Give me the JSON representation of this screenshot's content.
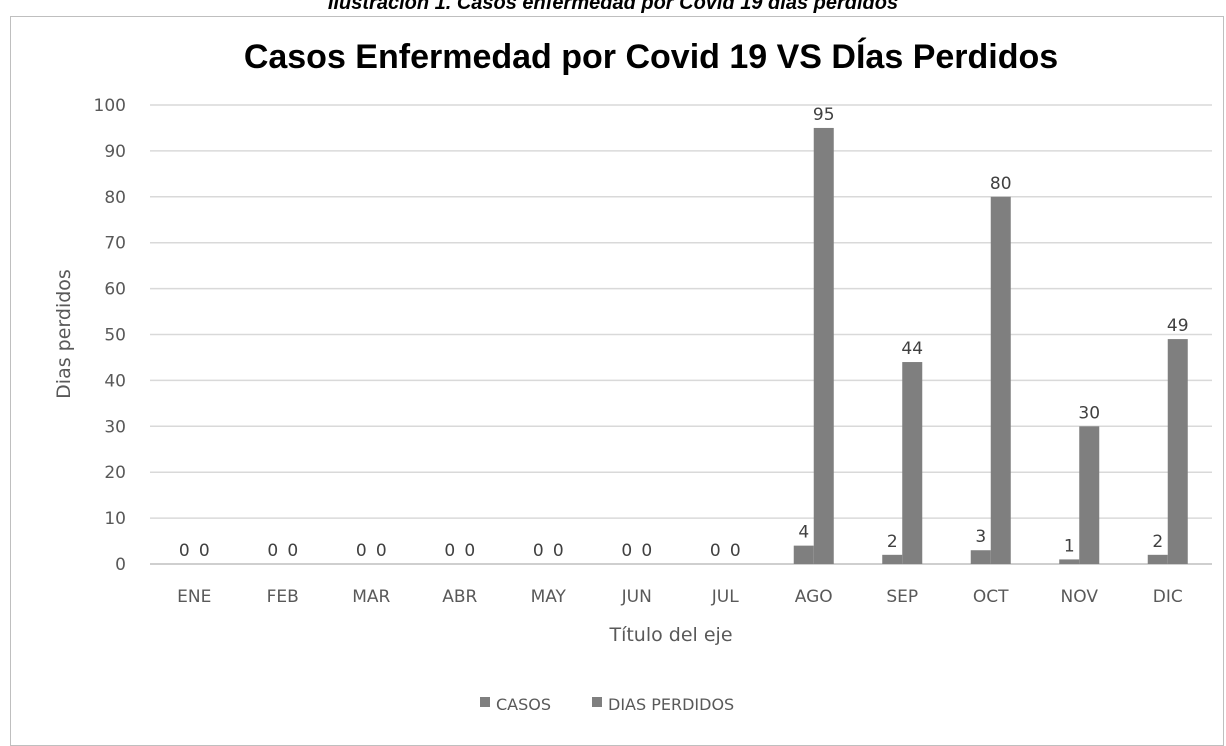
{
  "caption": "Ilustración 1. Casos enfermedad por Covid 19 días perdidos",
  "chart_data": {
    "type": "bar",
    "title": "Casos Enfermedad por Covid 19 VS DÍas Perdidos",
    "xlabel": "Título del eje",
    "ylabel": "Dias perdidos",
    "ylim": [
      0,
      100
    ],
    "yticks": [
      0,
      10,
      20,
      30,
      40,
      50,
      60,
      70,
      80,
      90,
      100
    ],
    "grid": true,
    "legend_position": "bottom",
    "categories": [
      "ENE",
      "FEB",
      "MAR",
      "ABR",
      "MAY",
      "JUN",
      "JUL",
      "AGO",
      "SEP",
      "OCT",
      "NOV",
      "DIC"
    ],
    "series": [
      {
        "name": "CASOS",
        "color": "#7f7f7f",
        "values": [
          0,
          0,
          0,
          0,
          0,
          0,
          0,
          4,
          2,
          3,
          1,
          2
        ]
      },
      {
        "name": "DIAS PERDIDOS",
        "color": "#7f7f7f",
        "values": [
          0,
          0,
          0,
          0,
          0,
          0,
          0,
          95,
          44,
          80,
          30,
          49
        ]
      }
    ]
  }
}
